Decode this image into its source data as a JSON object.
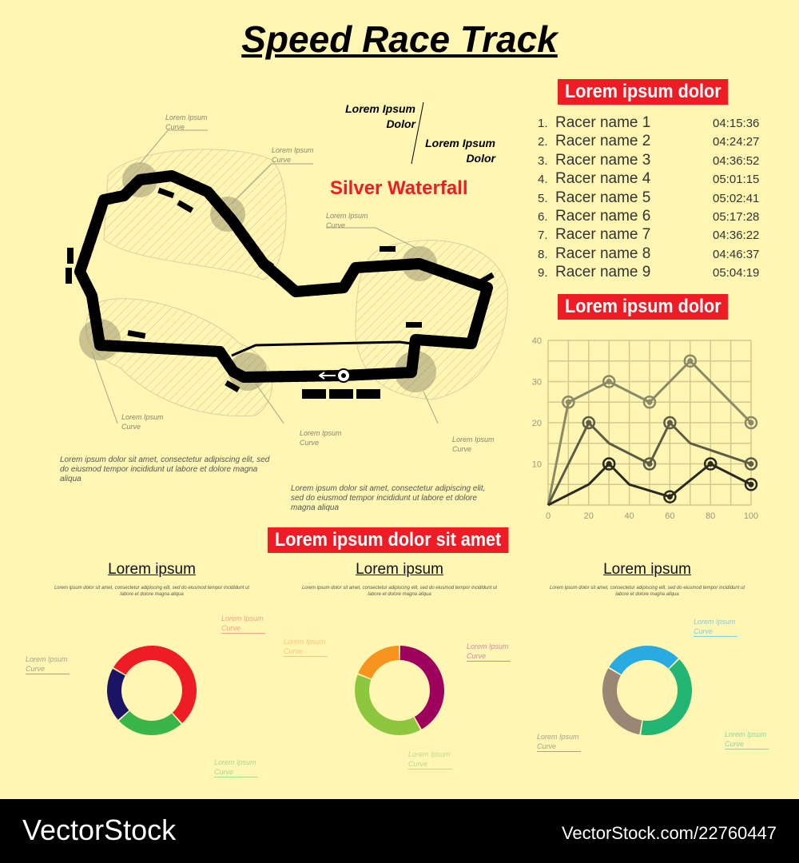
{
  "title": "Speed Race Track",
  "track": {
    "name": "Silver Waterfall",
    "label1": [
      "Lorem Ipsum",
      "Dolor"
    ],
    "label2": [
      "Lorem Ipsum",
      "Dolor"
    ],
    "curve_notes": [
      "Lorem Ipsum",
      "Curve"
    ],
    "paragraph": "Lorem ipsum dolor sit amet, consectetur adipiscing elit, sed do eiusmod tempor incididunt ut labore et dolore magna aliqua"
  },
  "results": {
    "heading": "Lorem ipsum dolor",
    "racers": [
      {
        "n": "1.",
        "name": "Racer name 1",
        "time": "04:15:36"
      },
      {
        "n": "2.",
        "name": "Racer name 2",
        "time": "04:24:27"
      },
      {
        "n": "3.",
        "name": "Racer name 3",
        "time": "04:36:52"
      },
      {
        "n": "4.",
        "name": "Racer name 4",
        "time": "05:01:15"
      },
      {
        "n": "5.",
        "name": "Racer name 5",
        "time": "05:02:41"
      },
      {
        "n": "6.",
        "name": "Racer name 6",
        "time": "05:17:28"
      },
      {
        "n": "7.",
        "name": "Racer name 7",
        "time": "04:36:22"
      },
      {
        "n": "8.",
        "name": "Racer name 8",
        "time": "04:46:37"
      },
      {
        "n": "9.",
        "name": "Racer name 9",
        "time": "05:04:19"
      }
    ]
  },
  "chart_heading": "Lorem ipsum dolor",
  "donut_heading": "Lorem ipsum dolor sit amet",
  "donut_title": "Lorem ipsum",
  "donut_text": "Lorem ipsum dolor sit amet, consectetur adipiscing elit, sed do eiusmod tempor incididunt ut labore et dolore magna aliqua",
  "chart_data": [
    {
      "type": "line",
      "xlim": [
        0,
        100
      ],
      "ylim": [
        0,
        40
      ],
      "grid": true,
      "xticks": [
        "0",
        "20",
        "40",
        "60",
        "80",
        "100"
      ],
      "yticks": [
        "10",
        "20",
        "30",
        "40"
      ],
      "series": [
        {
          "color": "#8c8a66",
          "x": [
            0,
            10,
            30,
            50,
            70,
            100
          ],
          "y": [
            0,
            25,
            30,
            25,
            35,
            20
          ],
          "markers": [
            10,
            30,
            50,
            70,
            100
          ]
        },
        {
          "color": "#5e5c44",
          "x": [
            0,
            20,
            30,
            50,
            60,
            70,
            100
          ],
          "y": [
            0,
            20,
            15,
            10,
            20,
            15,
            10
          ],
          "markers": [
            20,
            50,
            60,
            100
          ]
        },
        {
          "color": "#2a2a20",
          "x": [
            0,
            20,
            30,
            40,
            60,
            80,
            100
          ],
          "y": [
            0,
            5,
            10,
            5,
            2,
            10,
            5
          ],
          "markers": [
            30,
            60,
            80,
            100
          ]
        }
      ]
    },
    {
      "type": "pie",
      "donut": true,
      "slices": [
        {
          "value": 55,
          "color": "#ee1c24",
          "label": "Lorem Ipsum Curve"
        },
        {
          "value": 25,
          "color": "#39b54a",
          "label": "Lorem Ipsum Curve"
        },
        {
          "value": 20,
          "color": "#1b1464",
          "label": "Lorem Ipsum Curve"
        }
      ],
      "start": -60
    },
    {
      "type": "pie",
      "donut": true,
      "slices": [
        {
          "value": 42,
          "color": "#9e005d",
          "label": "Lorem Ipsum Curve"
        },
        {
          "value": 39,
          "color": "#8dc63f",
          "label": "Lorem Ipsum Curve"
        },
        {
          "value": 19,
          "color": "#f7941d",
          "label": "Lorem Ipsum Curve"
        }
      ],
      "start": 0
    },
    {
      "type": "pie",
      "donut": true,
      "slices": [
        {
          "value": 40,
          "color": "#22b573",
          "label": "Lorem Ipsum Curve"
        },
        {
          "value": 31,
          "color": "#998675",
          "label": "Lorem Ipsum Curve"
        },
        {
          "value": 29,
          "color": "#29abe2",
          "label": "Lorem Ipsum Curve"
        }
      ],
      "start": 45
    }
  ],
  "footer": {
    "brand": "VectorStock",
    "id": "VectorStock.com/22760447"
  }
}
